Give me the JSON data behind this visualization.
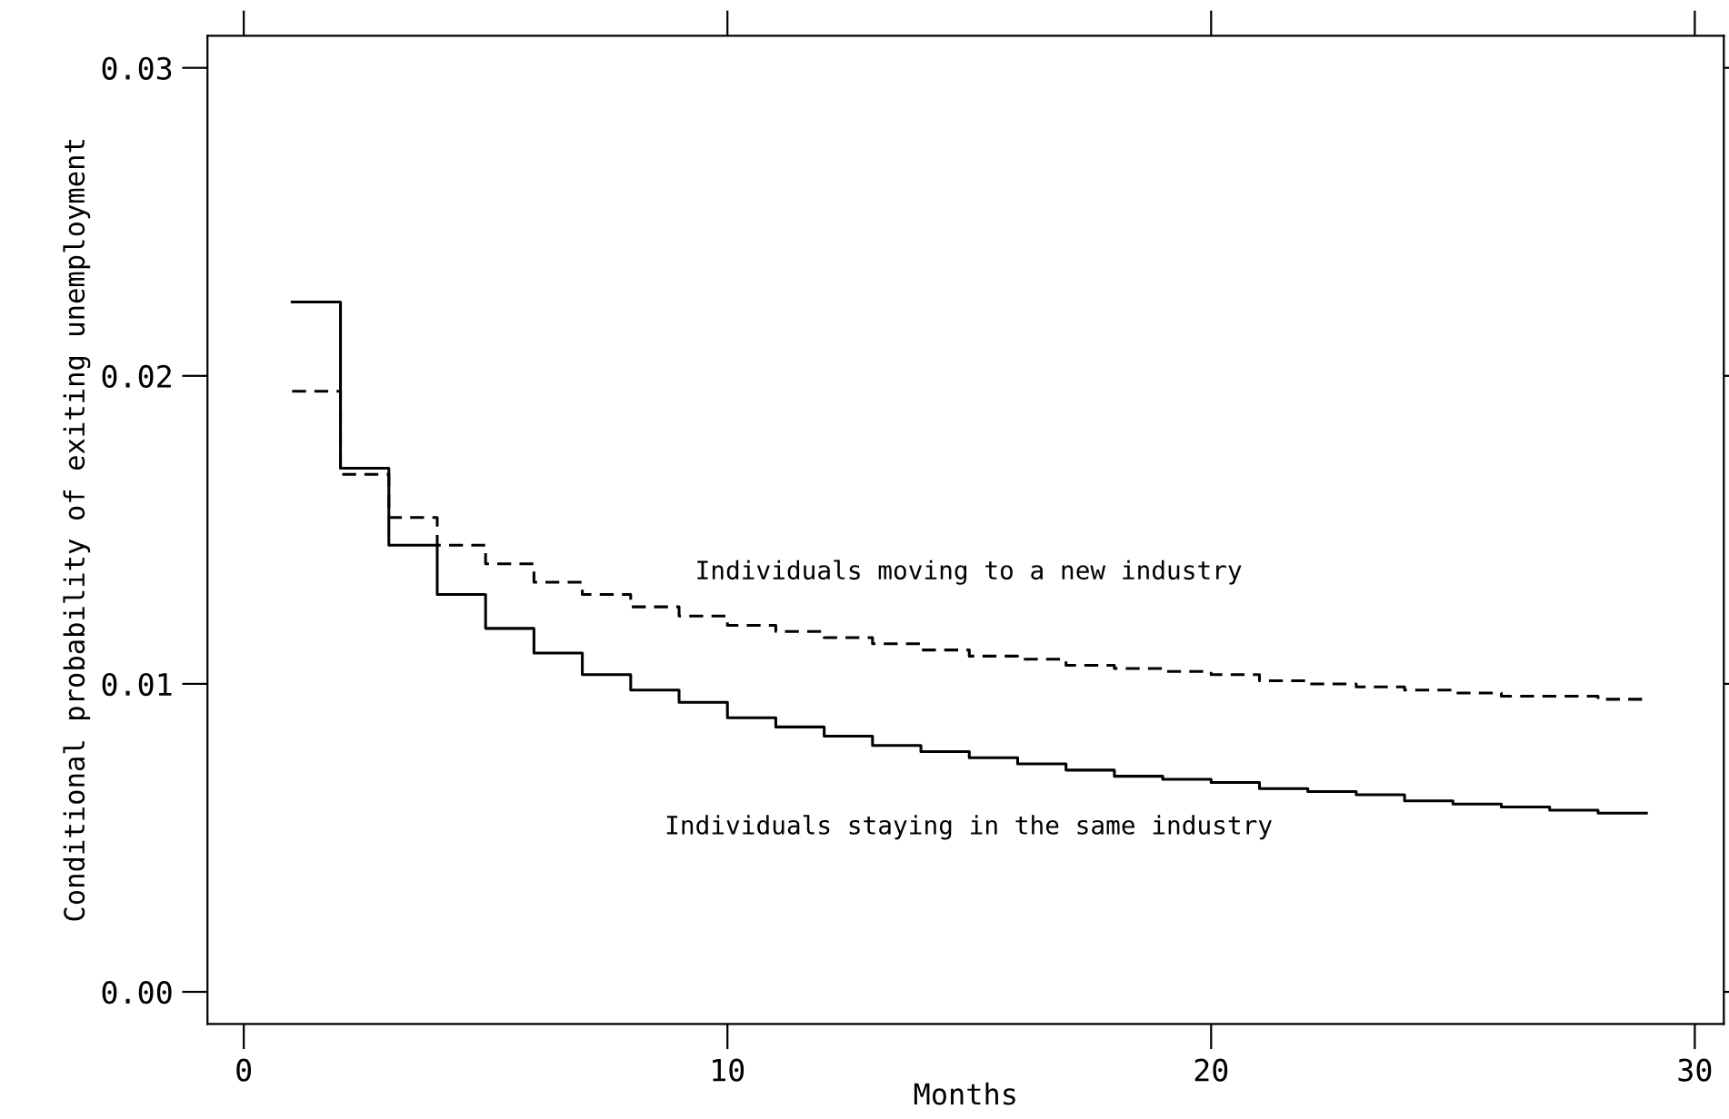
{
  "chart_data": {
    "type": "step",
    "xlabel": "Months",
    "ylabel": "Conditional probability of exiting unemployment",
    "x": [
      1,
      2,
      3,
      4,
      5,
      6,
      7,
      8,
      9,
      10,
      11,
      12,
      13,
      14,
      15,
      16,
      17,
      18,
      19,
      20,
      21,
      22,
      23,
      24,
      25,
      26,
      27,
      28,
      29
    ],
    "series": [
      {
        "color": "#000000",
        "line_style": "solid",
        "values": [
          0.0224,
          0.017,
          0.0145,
          0.0129,
          0.0118,
          0.011,
          0.0103,
          0.0098,
          0.0094,
          0.0089,
          0.0086,
          0.0083,
          0.008,
          0.0078,
          0.0076,
          0.0074,
          0.0072,
          0.007,
          0.0069,
          0.0068,
          0.0066,
          0.0065,
          0.0064,
          0.0062,
          0.0061,
          0.006,
          0.0059,
          0.0058,
          0.0058
        ]
      },
      {
        "color": "#000000",
        "line_style": "dashed",
        "values": [
          0.0195,
          0.0168,
          0.0154,
          0.0145,
          0.0139,
          0.0133,
          0.0129,
          0.0125,
          0.0122,
          0.0119,
          0.0117,
          0.0115,
          0.0113,
          0.0111,
          0.0109,
          0.0108,
          0.0106,
          0.0105,
          0.0104,
          0.0103,
          0.0101,
          0.01,
          0.0099,
          0.0098,
          0.0097,
          0.0096,
          0.0096,
          0.0095,
          0.0095
        ]
      }
    ],
    "annotations": [
      "Individuals moving to a new industry",
      "Individuals staying in the same industry"
    ],
    "xlim": [
      -0.75,
      30.6
    ],
    "ylim": [
      -0.00104,
      0.03104
    ],
    "xticks": [
      0,
      10,
      20,
      30
    ],
    "yticks": [
      {
        "value": 0,
        "label": "0.00"
      },
      {
        "value": 0.01,
        "label": "0.01"
      },
      {
        "value": 0.02,
        "label": "0.02"
      },
      {
        "value": 0.03,
        "label": "0.03"
      }
    ],
    "grid": false
  }
}
